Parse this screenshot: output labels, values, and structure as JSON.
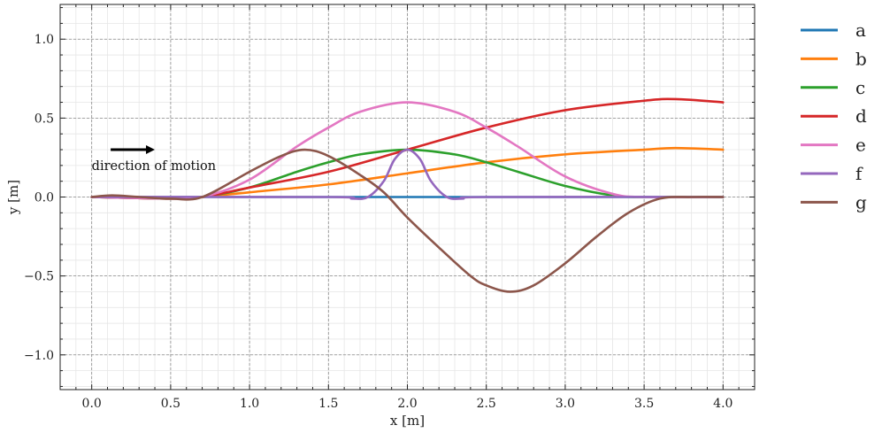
{
  "chart_data": {
    "type": "line",
    "title": "",
    "xlabel": "x [m]",
    "ylabel": "y [m]",
    "xlim": [
      -0.2,
      4.2
    ],
    "ylim": [
      -1.22,
      1.22
    ],
    "xticks": [
      0.0,
      0.5,
      1.0,
      1.5,
      2.0,
      2.5,
      3.0,
      3.5,
      4.0
    ],
    "xtick_labels": [
      "0.0",
      "0.5",
      "1.0",
      "1.5",
      "2.0",
      "2.5",
      "3.0",
      "3.5",
      "4.0"
    ],
    "yticks": [
      -1.0,
      -0.5,
      0.0,
      0.5,
      1.0
    ],
    "ytick_labels": [
      "−1.0",
      "−0.5",
      "0.0",
      "0.5",
      "1.0"
    ],
    "grid": true,
    "legend_position": "outside right, top",
    "annotation": {
      "text": "direction of motion",
      "arrow_from": [
        0.12,
        0.3
      ],
      "arrow_to": [
        0.4,
        0.3
      ],
      "text_at": [
        0.0,
        0.2
      ]
    },
    "series": [
      {
        "name": "a",
        "color": "#1f77b4",
        "x": [
          0.0,
          0.5,
          1.0,
          1.5,
          2.0,
          2.5,
          3.0,
          3.5,
          4.0
        ],
        "y": [
          0.0,
          0.0,
          0.0,
          0.0,
          0.0,
          0.0,
          0.0,
          0.0,
          0.0
        ]
      },
      {
        "name": "b",
        "color": "#ff7f0e",
        "x": [
          0.0,
          0.5,
          0.7,
          1.0,
          1.5,
          2.0,
          2.5,
          3.0,
          3.5,
          3.7,
          4.0
        ],
        "y": [
          0.0,
          -0.01,
          0.0,
          0.03,
          0.08,
          0.15,
          0.22,
          0.27,
          0.3,
          0.31,
          0.3
        ]
      },
      {
        "name": "c",
        "color": "#2ca02c",
        "x": [
          0.0,
          0.5,
          0.7,
          1.0,
          1.3,
          1.5,
          1.7,
          2.0,
          2.3,
          2.5,
          2.7,
          3.0,
          3.3,
          3.5,
          4.0
        ],
        "y": [
          0.0,
          -0.01,
          0.0,
          0.06,
          0.16,
          0.22,
          0.27,
          0.3,
          0.27,
          0.22,
          0.16,
          0.07,
          0.01,
          0.0,
          0.0
        ]
      },
      {
        "name": "d",
        "color": "#d62728",
        "x": [
          0.0,
          0.5,
          0.7,
          1.0,
          1.5,
          2.0,
          2.5,
          3.0,
          3.5,
          3.7,
          4.0
        ],
        "y": [
          0.0,
          -0.01,
          0.0,
          0.06,
          0.16,
          0.3,
          0.44,
          0.55,
          0.61,
          0.62,
          0.6
        ]
      },
      {
        "name": "e",
        "color": "#e377c2",
        "x": [
          0.0,
          0.5,
          0.7,
          1.0,
          1.3,
          1.5,
          1.7,
          2.0,
          2.3,
          2.5,
          2.7,
          3.0,
          3.3,
          3.5,
          4.0
        ],
        "y": [
          0.0,
          -0.01,
          0.0,
          0.11,
          0.32,
          0.44,
          0.54,
          0.6,
          0.54,
          0.44,
          0.32,
          0.13,
          0.02,
          0.0,
          0.0
        ]
      },
      {
        "name": "f",
        "color": "#9467bd",
        "x": [
          0.0,
          1.5,
          1.65,
          1.75,
          1.85,
          1.92,
          2.0,
          2.08,
          2.15,
          2.25,
          2.35,
          2.5,
          4.0
        ],
        "y": [
          0.0,
          0.0,
          -0.01,
          0.0,
          0.1,
          0.24,
          0.3,
          0.24,
          0.1,
          0.0,
          -0.01,
          0.0,
          0.0
        ]
      },
      {
        "name": "g",
        "color": "#8c564b",
        "x": [
          0.0,
          0.13,
          0.3,
          0.5,
          0.7,
          1.0,
          1.2,
          1.35,
          1.5,
          1.7,
          1.85,
          2.0,
          2.2,
          2.4,
          2.5,
          2.65,
          2.8,
          3.0,
          3.2,
          3.4,
          3.6,
          3.8,
          4.0
        ],
        "y": [
          0.0,
          0.01,
          0.0,
          -0.01,
          0.0,
          0.16,
          0.26,
          0.3,
          0.26,
          0.14,
          0.03,
          -0.13,
          -0.32,
          -0.5,
          -0.56,
          -0.6,
          -0.56,
          -0.42,
          -0.25,
          -0.1,
          -0.01,
          0.0,
          0.0
        ]
      }
    ]
  }
}
